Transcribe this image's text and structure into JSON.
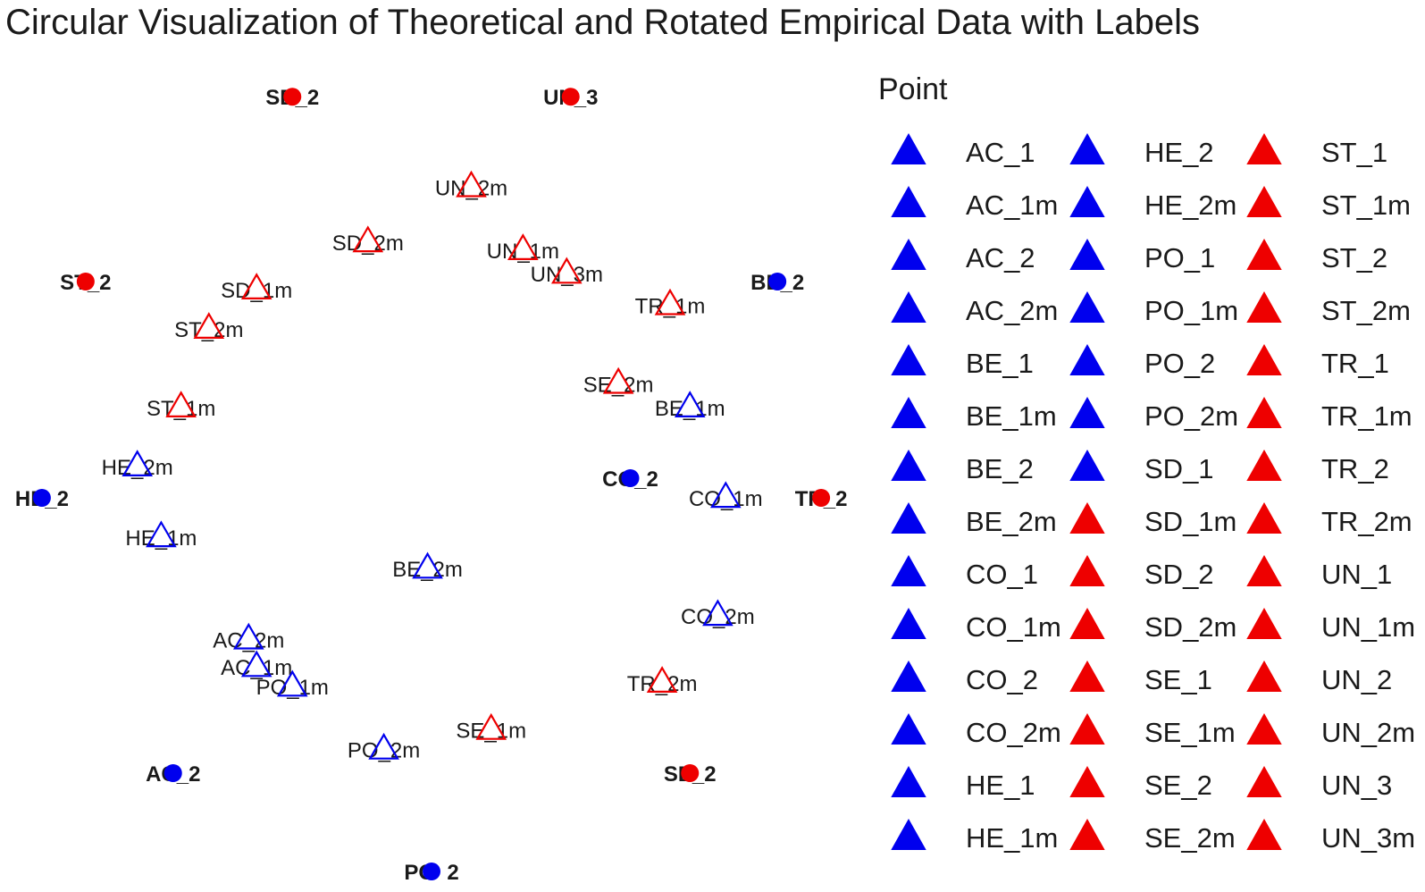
{
  "chart_data": {
    "type": "scatter",
    "title": "Circular Visualization of Theoretical and Rotated Empirical Data with Labels",
    "xlabel": "",
    "ylabel": "",
    "xlim": [
      -1.05,
      1.05
    ],
    "ylim": [
      -1.05,
      1.05
    ],
    "grid": false,
    "legend": {
      "title": "Point",
      "placement": "right",
      "columns": 3
    },
    "colors": {
      "blue": "#0000ee",
      "red": "#ee0000"
    },
    "theoretical_points": [
      {
        "label": "AC_2",
        "x": -0.65,
        "y": -0.75,
        "color": "blue"
      },
      {
        "label": "PO_2",
        "x": 0.0,
        "y": -1.0,
        "color": "blue"
      },
      {
        "label": "SE_2",
        "x": 0.65,
        "y": -0.75,
        "color": "red"
      },
      {
        "label": "TR_2",
        "x": 0.98,
        "y": -0.05,
        "color": "red"
      },
      {
        "label": "BE_2",
        "x": 0.87,
        "y": 0.5,
        "color": "blue"
      },
      {
        "label": "CO_2",
        "x": 0.5,
        "y": 0.0,
        "color": "blue"
      },
      {
        "label": "UN_3",
        "x": 0.35,
        "y": 0.97,
        "color": "red"
      },
      {
        "label": "SD_2",
        "x": -0.35,
        "y": 0.97,
        "color": "red"
      },
      {
        "label": "ST_2",
        "x": -0.87,
        "y": 0.5,
        "color": "red"
      },
      {
        "label": "HE_2",
        "x": -0.98,
        "y": -0.05,
        "color": "blue"
      }
    ],
    "empirical_points": [
      {
        "label": "UN_2m",
        "x": 0.1,
        "y": 0.74,
        "color": "red"
      },
      {
        "label": "UN_1m",
        "x": 0.23,
        "y": 0.58,
        "color": "red"
      },
      {
        "label": "UN_3m",
        "x": 0.34,
        "y": 0.52,
        "color": "red"
      },
      {
        "label": "SD_2m",
        "x": -0.16,
        "y": 0.6,
        "color": "red"
      },
      {
        "label": "SD_1m",
        "x": -0.44,
        "y": 0.48,
        "color": "red"
      },
      {
        "label": "TR_1m",
        "x": 0.6,
        "y": 0.44,
        "color": "red"
      },
      {
        "label": "ST_2m",
        "x": -0.56,
        "y": 0.38,
        "color": "red"
      },
      {
        "label": "SE_2m",
        "x": 0.47,
        "y": 0.24,
        "color": "red"
      },
      {
        "label": "BE_1m",
        "x": 0.65,
        "y": 0.18,
        "color": "blue"
      },
      {
        "label": "ST_1m",
        "x": -0.63,
        "y": 0.18,
        "color": "red"
      },
      {
        "label": "HE_2m",
        "x": -0.74,
        "y": 0.03,
        "color": "blue"
      },
      {
        "label": "CO_1m",
        "x": 0.74,
        "y": -0.05,
        "color": "blue"
      },
      {
        "label": "HE_1m",
        "x": -0.68,
        "y": -0.15,
        "color": "blue"
      },
      {
        "label": "BE_2m",
        "x": -0.01,
        "y": -0.23,
        "color": "blue"
      },
      {
        "label": "CO_2m",
        "x": 0.72,
        "y": -0.35,
        "color": "blue"
      },
      {
        "label": "AC_2m",
        "x": -0.46,
        "y": -0.41,
        "color": "blue"
      },
      {
        "label": "AC_1m",
        "x": -0.44,
        "y": -0.48,
        "color": "blue"
      },
      {
        "label": "PO_1m",
        "x": -0.35,
        "y": -0.53,
        "color": "blue"
      },
      {
        "label": "TR_2m",
        "x": 0.58,
        "y": -0.52,
        "color": "red"
      },
      {
        "label": "SE_1m",
        "x": 0.15,
        "y": -0.64,
        "color": "red"
      },
      {
        "label": "PO_2m",
        "x": -0.12,
        "y": -0.69,
        "color": "blue"
      }
    ],
    "legend_entries": [
      {
        "label": "AC_1",
        "color": "blue"
      },
      {
        "label": "AC_1m",
        "color": "blue"
      },
      {
        "label": "AC_2",
        "color": "blue"
      },
      {
        "label": "AC_2m",
        "color": "blue"
      },
      {
        "label": "BE_1",
        "color": "blue"
      },
      {
        "label": "BE_1m",
        "color": "blue"
      },
      {
        "label": "BE_2",
        "color": "blue"
      },
      {
        "label": "BE_2m",
        "color": "blue"
      },
      {
        "label": "CO_1",
        "color": "blue"
      },
      {
        "label": "CO_1m",
        "color": "blue"
      },
      {
        "label": "CO_2",
        "color": "blue"
      },
      {
        "label": "CO_2m",
        "color": "blue"
      },
      {
        "label": "HE_1",
        "color": "blue"
      },
      {
        "label": "HE_1m",
        "color": "blue"
      },
      {
        "label": "HE_2",
        "color": "blue"
      },
      {
        "label": "HE_2m",
        "color": "blue"
      },
      {
        "label": "PO_1",
        "color": "blue"
      },
      {
        "label": "PO_1m",
        "color": "blue"
      },
      {
        "label": "PO_2",
        "color": "blue"
      },
      {
        "label": "PO_2m",
        "color": "blue"
      },
      {
        "label": "SD_1",
        "color": "blue"
      },
      {
        "label": "SD_1m",
        "color": "red"
      },
      {
        "label": "SD_2",
        "color": "red"
      },
      {
        "label": "SD_2m",
        "color": "red"
      },
      {
        "label": "SE_1",
        "color": "red"
      },
      {
        "label": "SE_1m",
        "color": "red"
      },
      {
        "label": "SE_2",
        "color": "red"
      },
      {
        "label": "SE_2m",
        "color": "red"
      },
      {
        "label": "ST_1",
        "color": "red"
      },
      {
        "label": "ST_1m",
        "color": "red"
      },
      {
        "label": "ST_2",
        "color": "red"
      },
      {
        "label": "ST_2m",
        "color": "red"
      },
      {
        "label": "TR_1",
        "color": "red"
      },
      {
        "label": "TR_1m",
        "color": "red"
      },
      {
        "label": "TR_2",
        "color": "red"
      },
      {
        "label": "TR_2m",
        "color": "red"
      },
      {
        "label": "UN_1",
        "color": "red"
      },
      {
        "label": "UN_1m",
        "color": "red"
      },
      {
        "label": "UN_2",
        "color": "red"
      },
      {
        "label": "UN_2m",
        "color": "red"
      },
      {
        "label": "UN_3",
        "color": "red"
      },
      {
        "label": "UN_3m",
        "color": "red"
      }
    ]
  }
}
